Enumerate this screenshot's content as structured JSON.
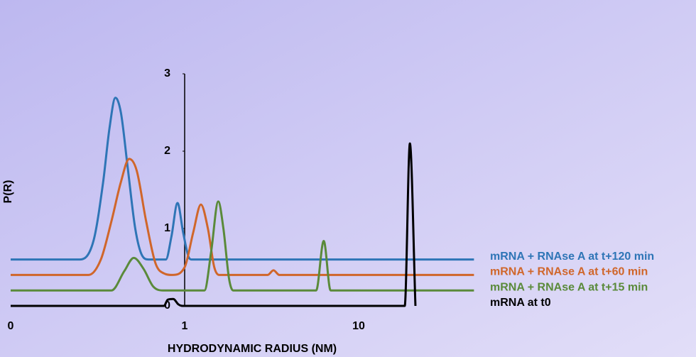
{
  "chart_data": {
    "type": "line",
    "x_label": "HYDRODYNAMIC RADIUS (NM)",
    "y_label": "P(R)",
    "x_log_scale": true,
    "xlim": [
      0.1,
      100
    ],
    "xticks": [
      {
        "value": 0.1,
        "label": "0"
      },
      1,
      10
    ],
    "ylim": [
      0,
      3
    ],
    "yticks": [
      0,
      1,
      2,
      3
    ],
    "series": [
      {
        "name": "mRNA + RNAse A at t+120 min",
        "color": "#2e75b6",
        "x": [
          0.1,
          0.25,
          0.3,
          0.34,
          0.37,
          0.4,
          0.43,
          0.47,
          0.52,
          0.57,
          0.62,
          0.78,
          0.84,
          0.91,
          0.98,
          1.06,
          1.1,
          46
        ],
        "values": [
          0.6,
          0.6,
          0.85,
          1.6,
          2.3,
          2.69,
          2.5,
          1.8,
          1.0,
          0.65,
          0.6,
          0.6,
          0.9,
          1.33,
          0.95,
          0.62,
          0.6,
          0.6
        ]
      },
      {
        "name": "mRNA + RNAse A at t+60 min",
        "color": "#d0662a",
        "x": [
          0.1,
          0.28,
          0.33,
          0.38,
          0.43,
          0.48,
          0.53,
          0.6,
          0.68,
          0.76,
          0.85,
          1.0,
          1.12,
          1.24,
          1.36,
          1.48,
          1.58,
          3.0,
          3.24,
          3.5,
          46
        ],
        "values": [
          0.4,
          0.4,
          0.6,
          1.1,
          1.6,
          1.9,
          1.75,
          1.1,
          0.55,
          0.42,
          0.4,
          0.5,
          0.95,
          1.31,
          1.0,
          0.5,
          0.4,
          0.4,
          0.46,
          0.4,
          0.4
        ]
      },
      {
        "name": "mRNA + RNAse A at t+15 min",
        "color": "#5a8a3a",
        "x": [
          0.1,
          0.38,
          0.45,
          0.51,
          0.58,
          0.66,
          0.75,
          1.3,
          1.42,
          1.56,
          1.67,
          1.8,
          1.9,
          5.7,
          6.3,
          6.9,
          46
        ],
        "values": [
          0.2,
          0.2,
          0.45,
          0.62,
          0.48,
          0.25,
          0.2,
          0.2,
          0.7,
          1.35,
          1.0,
          0.35,
          0.2,
          0.2,
          0.84,
          0.2,
          0.2
        ]
      },
      {
        "name": "mRNA at t0",
        "color": "#000000",
        "x": [
          0.1,
          0.76,
          0.8,
          0.86,
          0.92,
          0.97,
          18.4,
          19.7,
          21.2
        ],
        "values": [
          0,
          0,
          0.08,
          0.09,
          0.02,
          0,
          0,
          2.1,
          0
        ]
      }
    ]
  }
}
